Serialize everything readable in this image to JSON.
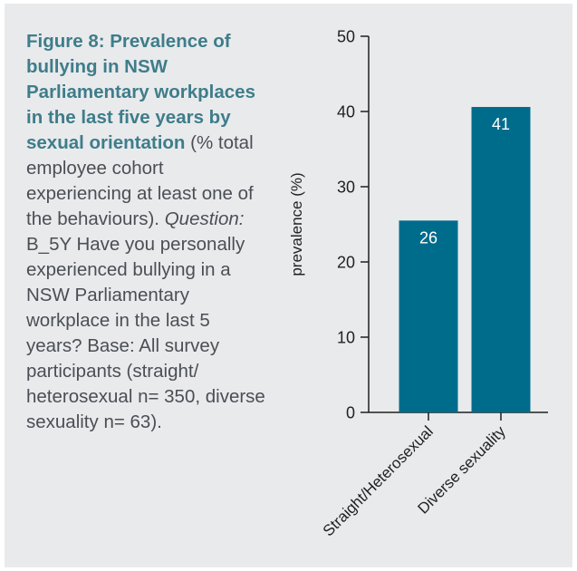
{
  "figure": {
    "title": "Figure 8: Prevalence of bullying in NSW Parliamentary workplaces in the last five years by sexual orientation",
    "description": " (% total employee cohort experiencing at least one of the behaviours).",
    "question_label": "Question:",
    "question_text": " B_5Y Have you personally experienced bullying in a NSW Parliamentary workplace in the last 5 years? Base: All survey participants (straight/ heterosexual n= 350, diverse sexuality n= 63)."
  },
  "colors": {
    "bar": "#006c8c",
    "panel": "#e9eaec",
    "title_text": "#3e7d8a",
    "body_text": "#4a4f55"
  },
  "chart_data": {
    "type": "bar",
    "categories": [
      "Straight/Heterosexual",
      "Diverse sexuality"
    ],
    "values": [
      26,
      41
    ],
    "bar_values": [
      25.5,
      40.6
    ],
    "data_labels": [
      "26",
      "41"
    ],
    "ylabel": "prevalence (%)",
    "xlabel": "",
    "ylim": [
      0,
      50
    ],
    "yticks": [
      0,
      10,
      20,
      30,
      40,
      50
    ],
    "grid": false,
    "legend": "none"
  }
}
